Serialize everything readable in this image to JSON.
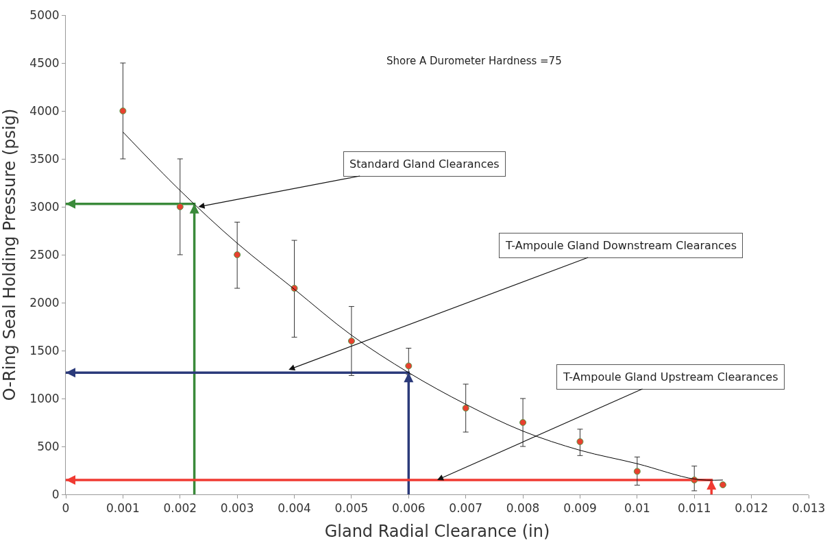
{
  "chart_data": {
    "type": "scatter",
    "xlabel": "Gland Radial Clearance (in)",
    "ylabel": "O-Ring Seal Holding Pressure (psig)",
    "xlim": [
      0,
      0.013
    ],
    "xticks": [
      0,
      0.001,
      0.002,
      0.003,
      0.004,
      0.005,
      0.006,
      0.007,
      0.008,
      0.009,
      0.01,
      0.011,
      0.012,
      0.013
    ],
    "ylim": [
      0,
      5000
    ],
    "yticks": [
      0,
      500,
      1000,
      1500,
      2000,
      2500,
      3000,
      3500,
      4000,
      4500,
      5000
    ],
    "series": [
      {
        "type": "line",
        "color": "#3a8a3a",
        "marker": "none",
        "line_style": "solid",
        "x": [
          0.00225,
          0.00225,
          0
        ],
        "values": [
          0,
          3030,
          3030
        ]
      },
      {
        "type": "line",
        "color": "#2b3a7a",
        "marker": "none",
        "line_style": "solid",
        "x": [
          0.006,
          0.006,
          0
        ],
        "values": [
          0,
          1270,
          1270
        ]
      },
      {
        "type": "line",
        "color": "#f03a32",
        "marker": "none",
        "line_style": "solid",
        "x": [
          0.0113,
          0.0113,
          0
        ],
        "values": [
          0,
          150,
          150
        ]
      },
      {
        "color": "#e8402f",
        "marker": "circle",
        "x": [
          0.001,
          0.002,
          0.003,
          0.004,
          0.005,
          0.006,
          0.007,
          0.008,
          0.009,
          0.01,
          0.011,
          0.0115
        ],
        "values": [
          4000,
          3000,
          2500,
          2150,
          1600,
          1340,
          900,
          750,
          550,
          240,
          150,
          100
        ],
        "errors": [
          [
            3500,
            4500
          ],
          [
            2500,
            3500
          ],
          [
            2150,
            2840
          ],
          [
            1640,
            2650
          ],
          [
            1240,
            1960
          ],
          [
            1250,
            1525
          ],
          [
            650,
            1150
          ],
          [
            500,
            1000
          ],
          [
            405,
            680
          ],
          [
            96,
            390
          ],
          [
            37,
            295
          ],
          null
        ]
      },
      {
        "type": "line",
        "color": "#000000",
        "marker": "none",
        "line_style": "solid",
        "x": [
          0.001,
          0.002,
          0.003,
          0.004,
          0.005,
          0.006,
          0.007,
          0.008,
          0.009,
          0.01,
          0.011,
          0.0115
        ],
        "values": [
          3780,
          3170,
          2620,
          2140,
          1660,
          1270,
          940,
          660,
          460,
          320,
          160,
          150
        ]
      }
    ],
    "annotations": [
      "Shore A Durometer Hardness =75",
      {
        "text": "Standard Gland Clearances",
        "x": 0.00232,
        "y": 3000
      },
      {
        "text": "T-Ampoule Gland Downstream Clearances",
        "x": 0.0039,
        "y": 1300
      },
      {
        "text": "T-Ampoule Gland Upstream Clearances",
        "x": 0.0065,
        "y": 150
      }
    ]
  }
}
